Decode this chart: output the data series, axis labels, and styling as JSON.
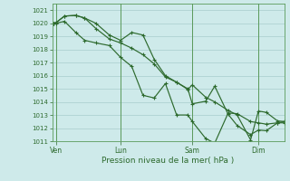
{
  "xlabel": "Pression niveau de la mer( hPa )",
  "bg_color": "#ceeaea",
  "grid_color": "#a8cccc",
  "line_color": "#2d6a2d",
  "spine_color": "#5a9a5a",
  "ylim": [
    1011,
    1021.5
  ],
  "yticks": [
    1011,
    1012,
    1013,
    1014,
    1015,
    1016,
    1017,
    1018,
    1019,
    1020,
    1021
  ],
  "vline_positions": [
    0.12,
    3.0,
    6.2,
    9.15
  ],
  "vline_labels": [
    "Ven",
    "Lun",
    "Sam",
    "Dim"
  ],
  "xlim": [
    -0.05,
    10.3
  ],
  "line1_x": [
    0.0,
    0.12,
    0.5,
    1.0,
    1.4,
    1.9,
    2.5,
    3.0,
    3.5,
    4.0,
    4.5,
    5.0,
    5.5,
    6.0,
    6.2,
    6.8,
    7.2,
    7.8,
    8.2,
    8.8,
    9.15,
    9.5,
    10.0,
    10.3
  ],
  "line1_y": [
    1020.0,
    1020.05,
    1020.55,
    1020.6,
    1020.4,
    1019.6,
    1018.8,
    1018.5,
    1018.1,
    1017.6,
    1016.9,
    1015.9,
    1015.5,
    1014.95,
    1015.3,
    1014.35,
    1014.0,
    1013.35,
    1013.0,
    1011.1,
    1013.3,
    1013.2,
    1012.55,
    1012.5
  ],
  "line2_x": [
    0.0,
    0.12,
    0.5,
    1.0,
    1.4,
    1.9,
    2.5,
    3.0,
    3.5,
    4.0,
    4.5,
    5.0,
    5.5,
    6.0,
    6.2,
    6.8,
    7.2,
    7.8,
    8.2,
    8.8,
    9.15,
    9.5,
    10.0,
    10.3
  ],
  "line2_y": [
    1020.0,
    1020.05,
    1020.55,
    1020.6,
    1020.4,
    1020.0,
    1019.1,
    1018.7,
    1019.3,
    1019.1,
    1017.25,
    1016.0,
    1015.5,
    1015.0,
    1013.85,
    1014.05,
    1015.2,
    1013.05,
    1012.2,
    1011.5,
    1011.85,
    1011.8,
    1012.4,
    1012.5
  ],
  "line3_x": [
    0.0,
    0.12,
    0.5,
    1.0,
    1.4,
    1.9,
    2.5,
    3.0,
    3.5,
    4.0,
    4.5,
    5.0,
    5.5,
    6.0,
    6.2,
    6.8,
    7.2,
    7.8,
    8.2,
    8.8,
    9.15,
    9.5,
    10.0,
    10.3
  ],
  "line3_y": [
    1020.0,
    1020.0,
    1020.15,
    1019.3,
    1018.7,
    1018.5,
    1018.3,
    1017.4,
    1016.7,
    1014.5,
    1014.3,
    1015.4,
    1013.0,
    1013.0,
    1012.5,
    1011.2,
    1010.85,
    1013.15,
    1013.1,
    1012.5,
    1012.4,
    1012.3,
    1012.4,
    1012.4
  ],
  "marker": "+",
  "markersize": 3.5,
  "linewidth": 0.85
}
